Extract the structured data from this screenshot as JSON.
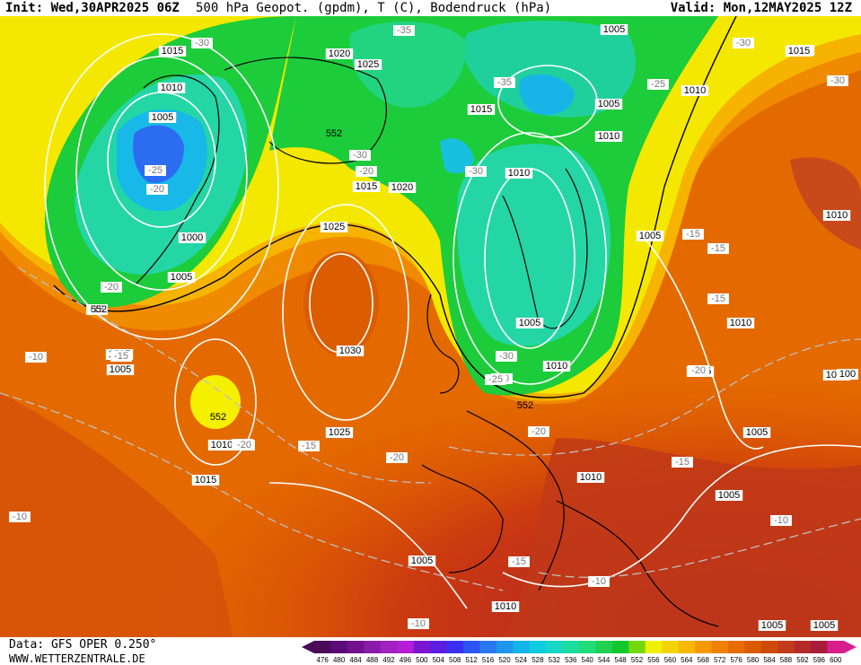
{
  "header": {
    "init": "Init: Wed,30APR2025 06Z",
    "title": "500 hPa Geopot. (gpdm), T (C), Bodendruck (hPa)",
    "valid": "Valid: Mon,12MAY2025 12Z"
  },
  "footer": {
    "data_source": "Data: GFS OPER 0.250°",
    "site": "WWW.WETTERZENTRALE.DE"
  },
  "legend": {
    "values": [
      "476",
      "480",
      "484",
      "488",
      "492",
      "496",
      "500",
      "504",
      "508",
      "512",
      "516",
      "520",
      "524",
      "528",
      "532",
      "536",
      "540",
      "544",
      "548",
      "552",
      "556",
      "560",
      "564",
      "568",
      "572",
      "576",
      "580",
      "584",
      "588",
      "592",
      "596",
      "600"
    ],
    "colors": [
      "#4a0a5a",
      "#5c0c78",
      "#72108e",
      "#8a1aa8",
      "#a020c0",
      "#b41ed6",
      "#7a16d0",
      "#5b1ee0",
      "#3c2ef0",
      "#2c54f4",
      "#2a78f0",
      "#1e96ec",
      "#14b4e8",
      "#10cce0",
      "#16d8c4",
      "#1cdca0",
      "#22dc7a",
      "#20d050",
      "#14c82c",
      "#74d80e",
      "#f0f000",
      "#f4d400",
      "#f6b800",
      "#f49a00",
      "#ee8200",
      "#e66c00",
      "#dc5a00",
      "#d04a0c",
      "#c43a1c",
      "#b42a2a",
      "#a81e3a",
      "#d81e8c"
    ]
  },
  "map": {
    "isobar_labels": [
      "1015",
      "1010",
      "1005",
      "1000",
      "1005",
      "1020",
      "1025",
      "1015",
      "1020",
      "1025",
      "1030",
      "1025",
      "1010",
      "1015",
      "1005",
      "1005",
      "1010",
      "1015",
      "1010",
      "1010",
      "1005",
      "1005",
      "1010",
      "1005",
      "1005",
      "1010",
      "1005",
      "1005",
      "1010",
      "1010",
      "1005",
      "1005",
      "1005",
      "1005",
      "1015",
      "1010",
      "1015",
      "1010",
      "100"
    ],
    "temp_labels": [
      "-30",
      "-35",
      "-35",
      "-30",
      "-30",
      "-25",
      "-20",
      "-20",
      "-15",
      "-10",
      "-15",
      "-20",
      "-20",
      "-30",
      "-30",
      "-25",
      "-25",
      "-30",
      "-30",
      "-15",
      "-15",
      "-15",
      "-20",
      "-20",
      "-15",
      "-20",
      "-10",
      "-15",
      "-10",
      "-10",
      "-15",
      "-10",
      "-20"
    ],
    "height_labels": [
      "552",
      "552",
      "552",
      "552"
    ]
  }
}
